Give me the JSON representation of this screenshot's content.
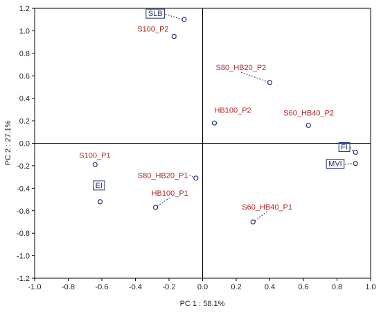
{
  "chart_data": {
    "type": "scatter",
    "xlabel": "PC 1 : 58.1%",
    "ylabel": "PC 2 : 27.1%",
    "xlim": [
      -1.0,
      1.0
    ],
    "ylim": [
      -1.2,
      1.2
    ],
    "xticks": [
      -1.0,
      -0.8,
      -0.6,
      -0.4,
      -0.2,
      0.0,
      0.2,
      0.4,
      0.6,
      0.8,
      1.0
    ],
    "yticks": [
      -1.2,
      -1.0,
      -0.8,
      -0.6,
      -0.4,
      -0.2,
      0.0,
      0.2,
      0.4,
      0.6,
      0.8,
      1.0,
      1.2
    ],
    "xtick_labels": [
      "-1.0",
      "-0.8",
      "-0.6",
      "-0.4",
      "-0.2",
      "0.0",
      "0.2",
      "0.4",
      "0.6",
      "0.8",
      "1.0"
    ],
    "ytick_labels": [
      "-1.2",
      "-1.0",
      "-0.8",
      "-0.6",
      "-0.4",
      "-0.2",
      "0.0",
      "0.2",
      "0.4",
      "0.6",
      "0.8",
      "1.0",
      "1.2"
    ],
    "grid": false,
    "reference_lines": {
      "x": 0.0,
      "y": 0.0
    },
    "colors": {
      "samples": "#b22222",
      "variables": "#1f2f7a"
    },
    "samples": [
      {
        "label": "S100_P2",
        "x": -0.17,
        "y": 0.95
      },
      {
        "label": "S80_HB20_P2",
        "x": 0.4,
        "y": 0.54
      },
      {
        "label": "HB100_P2",
        "x": 0.07,
        "y": 0.18
      },
      {
        "label": "S60_HB40_P2",
        "x": 0.63,
        "y": 0.16
      },
      {
        "label": "S100_P1",
        "x": -0.64,
        "y": -0.19
      },
      {
        "label": "S80_HB20_P1",
        "x": -0.04,
        "y": -0.31
      },
      {
        "label": "HB100_P1",
        "x": -0.28,
        "y": -0.57
      },
      {
        "label": "S60_HB40_P1",
        "x": 0.3,
        "y": -0.7
      }
    ],
    "variables": [
      {
        "label": "SLB",
        "x": -0.11,
        "y": 1.1
      },
      {
        "label": "FI",
        "x": 0.91,
        "y": -0.08
      },
      {
        "label": "MVI",
        "x": 0.91,
        "y": -0.18
      },
      {
        "label": "EI",
        "x": -0.61,
        "y": -0.52
      }
    ]
  }
}
